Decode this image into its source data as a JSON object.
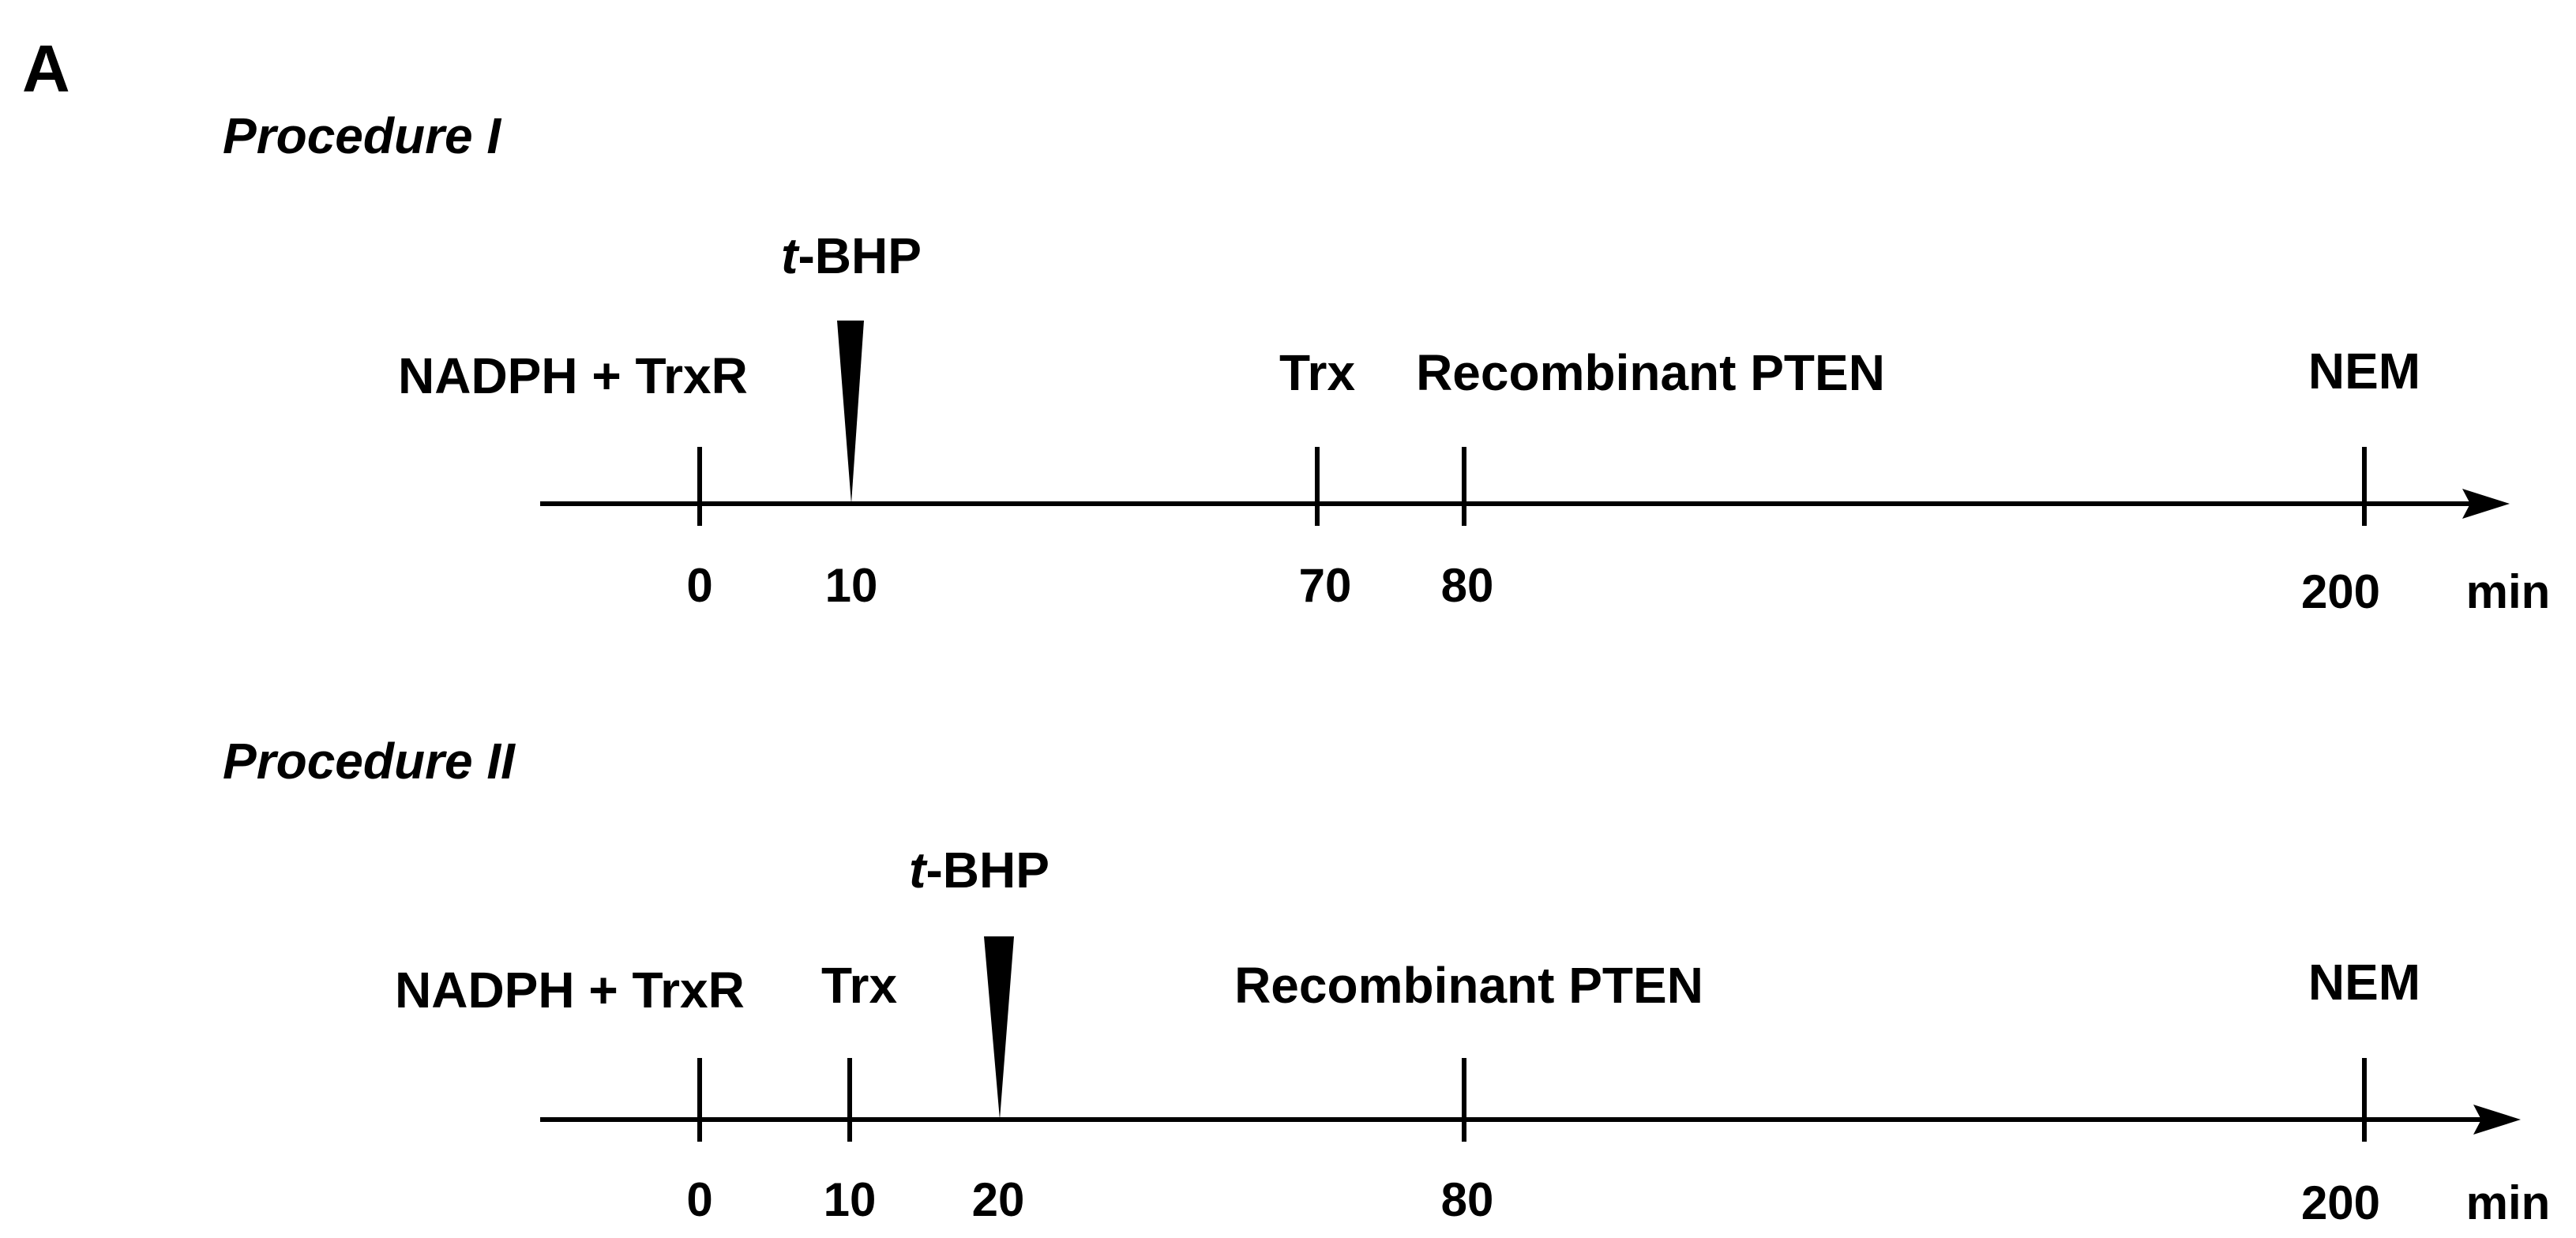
{
  "panel_label": "A",
  "procedures": [
    {
      "title": "Procedure I",
      "unit": "min",
      "ticks": [
        "0",
        "10",
        "70",
        "80",
        "200"
      ],
      "events": {
        "nadph_trxr": "NADPH + TrxR",
        "tbhp_t": "t",
        "tbhp_rest": "-BHP",
        "trx": "Trx",
        "pten": "Recombinant PTEN",
        "nem": "NEM"
      }
    },
    {
      "title": "Procedure II",
      "unit": "min",
      "ticks": [
        "0",
        "10",
        "20",
        "80",
        "200"
      ],
      "events": {
        "nadph_trxr": "NADPH + TrxR",
        "trx": "Trx",
        "tbhp_t": "t",
        "tbhp_rest": "-BHP",
        "pten": "Recombinant PTEN",
        "nem": "NEM"
      }
    }
  ]
}
